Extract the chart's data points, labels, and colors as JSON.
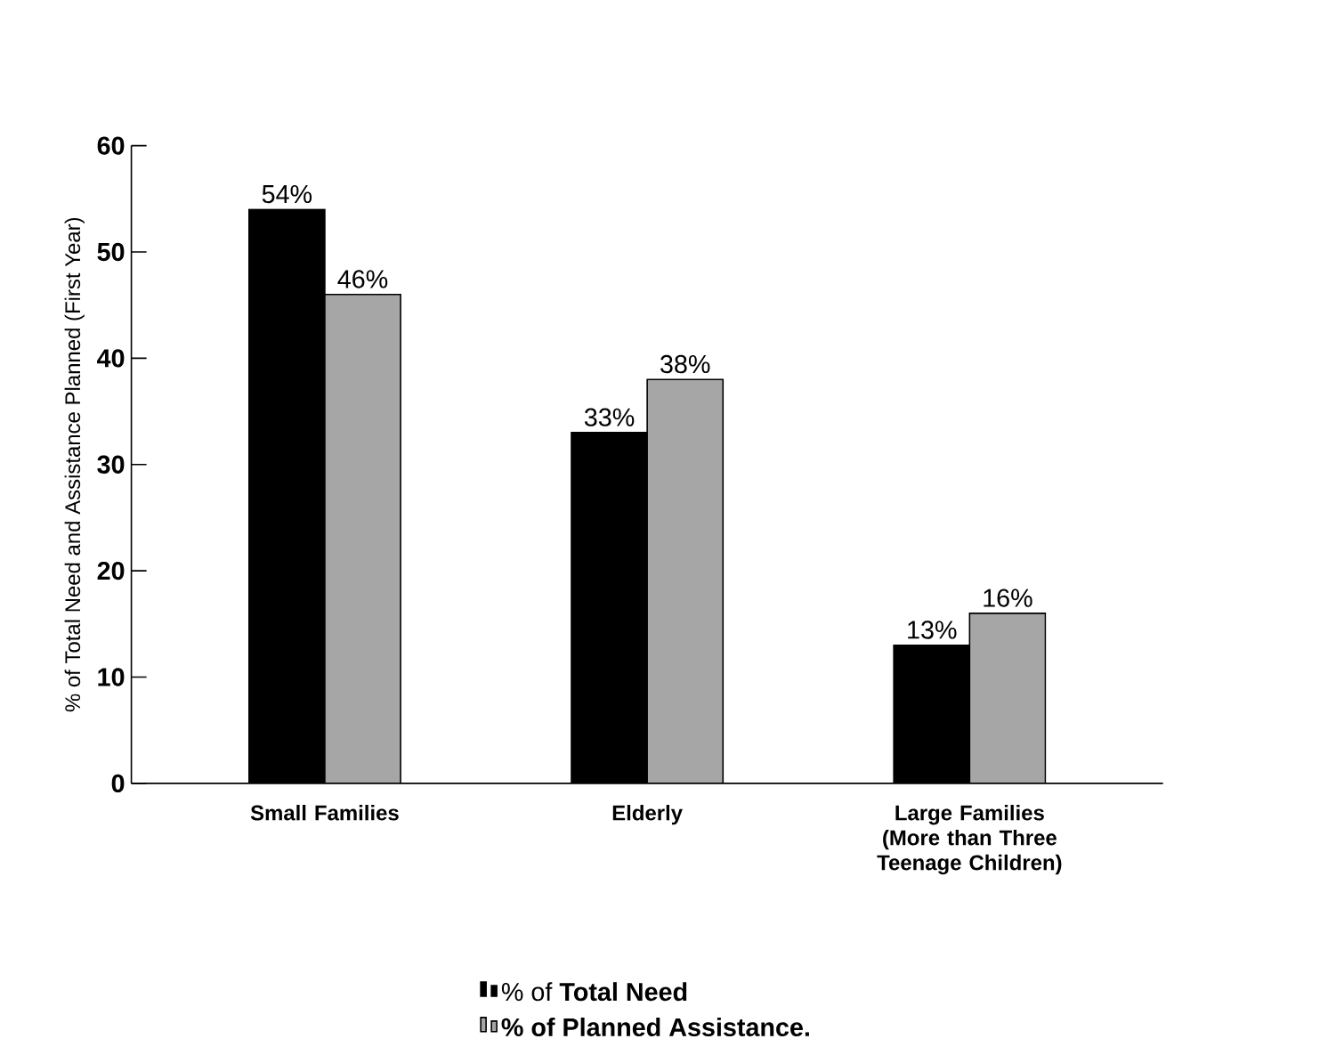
{
  "chart_data": {
    "type": "bar",
    "ylabel": "% of Total Need and Assistance Planned (First Year)",
    "categories": [
      "Small Families",
      "Elderly",
      "Large Families (More than Three Teenage Children)"
    ],
    "series": [
      {
        "name": "% of **Total Need**",
        "color": "#000000",
        "values": [
          54,
          33,
          13
        ],
        "value_labels": [
          "54%",
          "33%",
          "13%"
        ]
      },
      {
        "name": "**% of Planned Assistance.**",
        "color": "#a6a6a6",
        "values": [
          46,
          38,
          16
        ],
        "value_labels": [
          "46%",
          "38%",
          "16%"
        ]
      }
    ],
    "ylim": [
      0,
      60
    ],
    "yticks": [
      0,
      10,
      20,
      30,
      40,
      50,
      60
    ],
    "legend": "bottom",
    "grid": false
  }
}
